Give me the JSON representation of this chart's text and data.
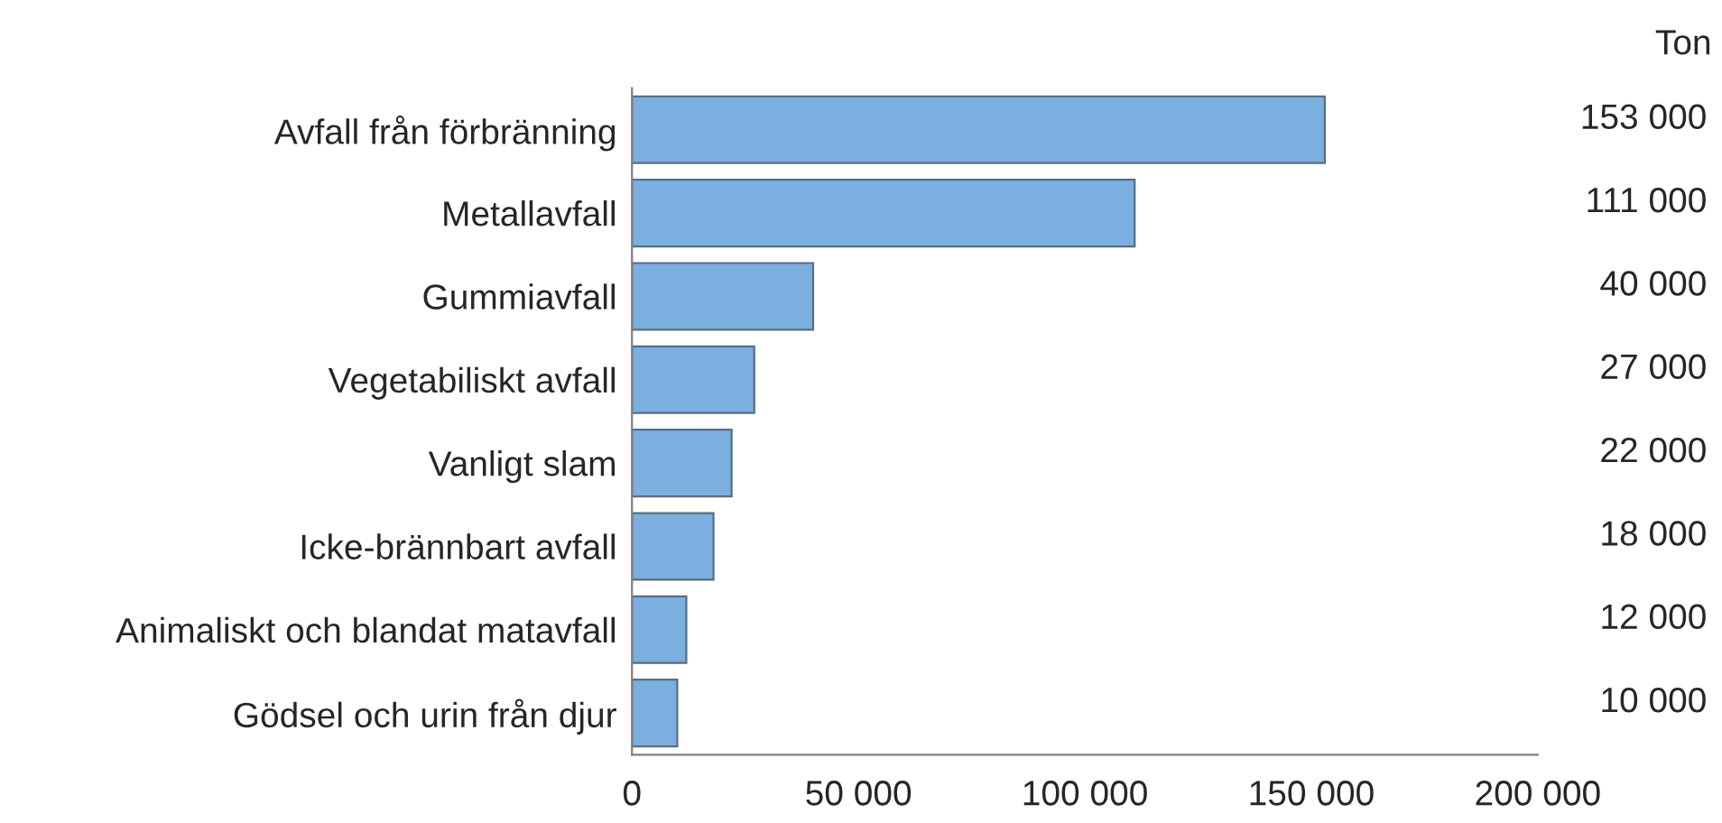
{
  "chart_data": {
    "type": "bar",
    "orientation": "horizontal",
    "categories": [
      "Avfall från förbränning",
      "Metallavfall",
      "Gummiavfall",
      "Vegetabiliskt avfall",
      "Vanligt slam",
      "Icke-brännbart avfall",
      "Animaliskt och blandat matavfall",
      "Gödsel och urin från djur"
    ],
    "values": [
      153000,
      111000,
      40000,
      27000,
      22000,
      18000,
      12000,
      10000
    ],
    "value_labels": [
      "153 000",
      "111 000",
      "40 000",
      "27 000",
      "22 000",
      "18 000",
      "12 000",
      "10 000"
    ],
    "color": "#7aafdf",
    "xlim": [
      0,
      200000
    ],
    "xticks": [
      0,
      {
        "value": 50000,
        "label": "50 000"
      },
      {
        "value": 100000,
        "label": "100 000"
      },
      {
        "value": 150000,
        "label": "150 000"
      },
      {
        "value": 200000,
        "label": "200 000"
      }
    ],
    "annotations": [
      "Ton"
    ],
    "grid": false
  }
}
